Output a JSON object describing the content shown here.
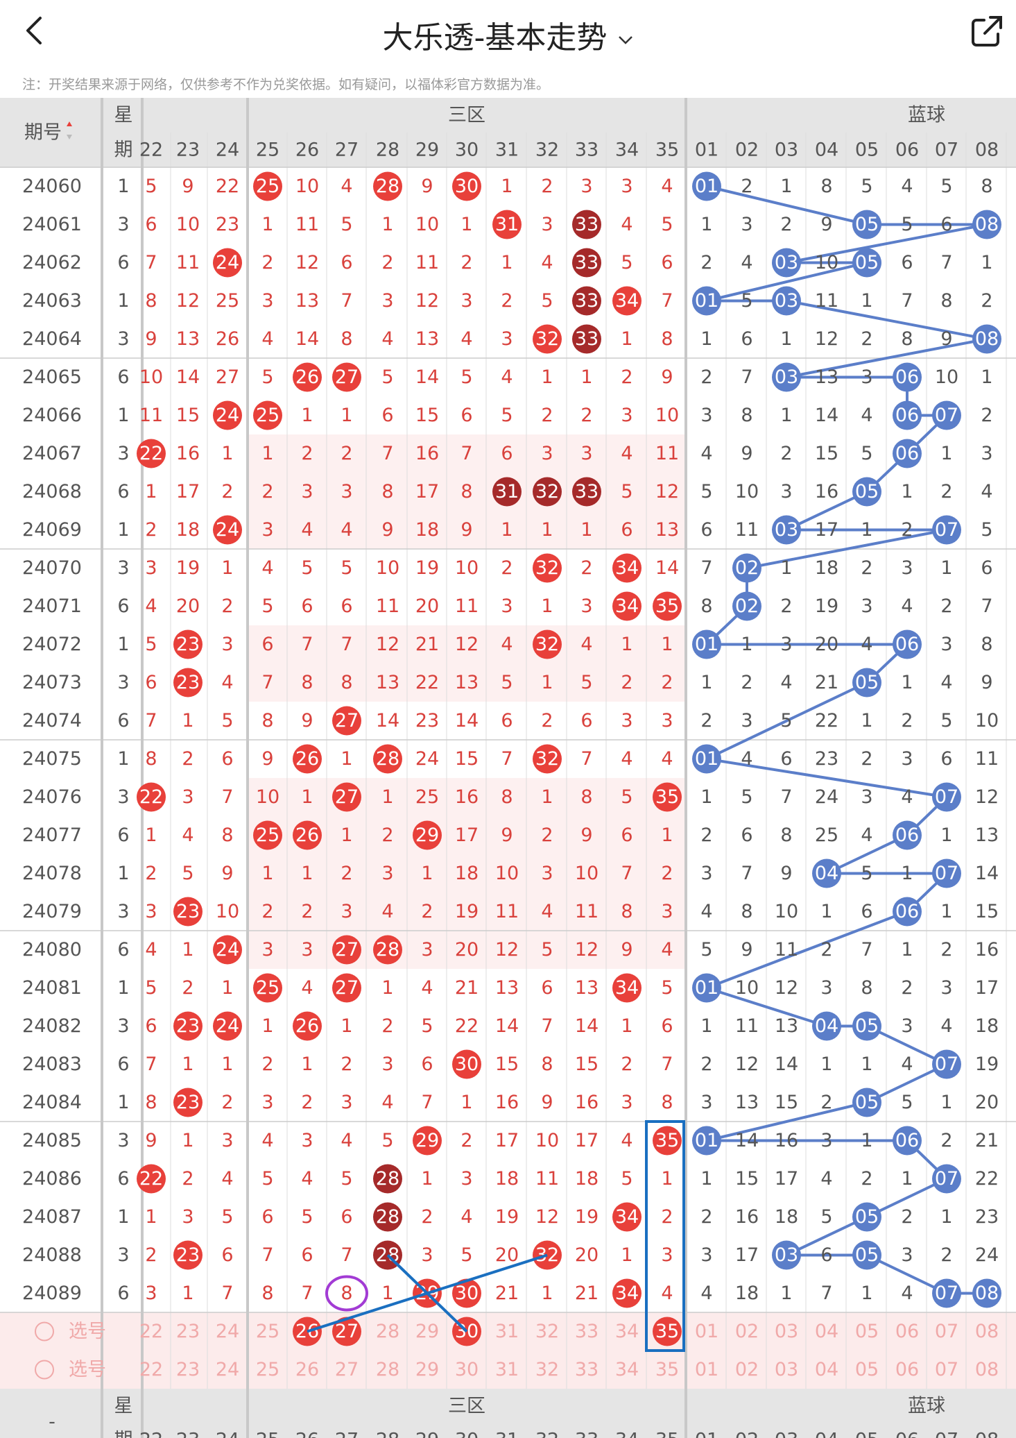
{
  "header": {
    "title": "大乐透-基本走势",
    "note": "注：开奖结果来源于网络，仅供参考不作为兑奖依据。如有疑问，以福体彩官方数据为准。"
  },
  "table": {
    "issue_label": "期号",
    "weekday_label_1": "星",
    "weekday_label_2": "期",
    "zone3_label": "三区",
    "blue_label": "蓝球",
    "pick_label": "选号",
    "bottom_issue_label": "-",
    "red_columns": [
      "22",
      "23",
      "24",
      "25",
      "26",
      "27",
      "28",
      "29",
      "30",
      "31",
      "32",
      "33",
      "34",
      "35"
    ],
    "blue_columns": [
      "01",
      "02",
      "03",
      "04",
      "05",
      "06",
      "07",
      "08"
    ],
    "rows": [
      {
        "issue": "24060",
        "wd": "1",
        "red": [
          "5",
          "9",
          "22",
          "25",
          "10",
          "4",
          "28",
          "9",
          "30",
          "1",
          "2",
          "3",
          "3",
          "4"
        ],
        "blue": [
          "01",
          "2",
          "1",
          "8",
          "5",
          "4",
          "5",
          "8"
        ]
      },
      {
        "issue": "24061",
        "wd": "3",
        "red": [
          "6",
          "10",
          "23",
          "1",
          "11",
          "5",
          "1",
          "10",
          "1",
          "31",
          "3",
          "33",
          "4",
          "5"
        ],
        "blue": [
          "1",
          "3",
          "2",
          "9",
          "05",
          "5",
          "6",
          "08"
        ]
      },
      {
        "issue": "24062",
        "wd": "6",
        "red": [
          "7",
          "11",
          "24",
          "2",
          "12",
          "6",
          "2",
          "11",
          "2",
          "1",
          "4",
          "33",
          "5",
          "6"
        ],
        "blue": [
          "2",
          "4",
          "03",
          "10",
          "05",
          "6",
          "7",
          "1"
        ]
      },
      {
        "issue": "24063",
        "wd": "1",
        "red": [
          "8",
          "12",
          "25",
          "3",
          "13",
          "7",
          "3",
          "12",
          "3",
          "2",
          "5",
          "33",
          "34",
          "7"
        ],
        "blue": [
          "01",
          "5",
          "03",
          "11",
          "1",
          "7",
          "8",
          "2"
        ]
      },
      {
        "issue": "24064",
        "wd": "3",
        "red": [
          "9",
          "13",
          "26",
          "4",
          "14",
          "8",
          "4",
          "13",
          "4",
          "3",
          "32",
          "33",
          "1",
          "8"
        ],
        "blue": [
          "1",
          "6",
          "1",
          "12",
          "2",
          "8",
          "9",
          "08"
        ]
      },
      {
        "issue": "24065",
        "wd": "6",
        "red": [
          "10",
          "14",
          "27",
          "5",
          "26",
          "27",
          "5",
          "14",
          "5",
          "4",
          "1",
          "1",
          "2",
          "9"
        ],
        "blue": [
          "2",
          "7",
          "03",
          "13",
          "3",
          "06",
          "10",
          "1"
        ]
      },
      {
        "issue": "24066",
        "wd": "1",
        "red": [
          "11",
          "15",
          "24",
          "25",
          "1",
          "1",
          "6",
          "15",
          "6",
          "5",
          "2",
          "2",
          "3",
          "10"
        ],
        "blue": [
          "3",
          "8",
          "1",
          "14",
          "4",
          "06",
          "07",
          "2"
        ]
      },
      {
        "issue": "24067",
        "wd": "3",
        "red": [
          "22",
          "16",
          "1",
          "1",
          "2",
          "2",
          "7",
          "16",
          "7",
          "6",
          "3",
          "3",
          "4",
          "11"
        ],
        "blue": [
          "4",
          "9",
          "2",
          "15",
          "5",
          "06",
          "1",
          "3"
        ]
      },
      {
        "issue": "24068",
        "wd": "6",
        "red": [
          "1",
          "17",
          "2",
          "2",
          "3",
          "3",
          "8",
          "17",
          "8",
          "31",
          "32",
          "33",
          "5",
          "12"
        ],
        "blue": [
          "5",
          "10",
          "3",
          "16",
          "05",
          "1",
          "2",
          "4"
        ]
      },
      {
        "issue": "24069",
        "wd": "1",
        "red": [
          "2",
          "18",
          "24",
          "3",
          "4",
          "4",
          "9",
          "18",
          "9",
          "1",
          "1",
          "1",
          "6",
          "13"
        ],
        "blue": [
          "6",
          "11",
          "03",
          "17",
          "1",
          "2",
          "07",
          "5"
        ]
      },
      {
        "issue": "24070",
        "wd": "3",
        "red": [
          "3",
          "19",
          "1",
          "4",
          "5",
          "5",
          "10",
          "19",
          "10",
          "2",
          "32",
          "2",
          "34",
          "14"
        ],
        "blue": [
          "7",
          "02",
          "1",
          "18",
          "2",
          "3",
          "1",
          "6"
        ]
      },
      {
        "issue": "24071",
        "wd": "6",
        "red": [
          "4",
          "20",
          "2",
          "5",
          "6",
          "6",
          "11",
          "20",
          "11",
          "3",
          "1",
          "3",
          "34",
          "35"
        ],
        "blue": [
          "8",
          "02",
          "2",
          "19",
          "3",
          "4",
          "2",
          "7"
        ]
      },
      {
        "issue": "24072",
        "wd": "1",
        "red": [
          "5",
          "23",
          "3",
          "6",
          "7",
          "7",
          "12",
          "21",
          "12",
          "4",
          "32",
          "4",
          "1",
          "1"
        ],
        "blue": [
          "01",
          "1",
          "3",
          "20",
          "4",
          "06",
          "3",
          "8"
        ]
      },
      {
        "issue": "24073",
        "wd": "3",
        "red": [
          "6",
          "23",
          "4",
          "7",
          "8",
          "8",
          "13",
          "22",
          "13",
          "5",
          "1",
          "5",
          "2",
          "2"
        ],
        "blue": [
          "1",
          "2",
          "4",
          "21",
          "05",
          "1",
          "4",
          "9"
        ]
      },
      {
        "issue": "24074",
        "wd": "6",
        "red": [
          "7",
          "1",
          "5",
          "8",
          "9",
          "27",
          "14",
          "23",
          "14",
          "6",
          "2",
          "6",
          "3",
          "3"
        ],
        "blue": [
          "2",
          "3",
          "5",
          "22",
          "1",
          "2",
          "5",
          "10"
        ]
      },
      {
        "issue": "24075",
        "wd": "1",
        "red": [
          "8",
          "2",
          "6",
          "9",
          "26",
          "1",
          "28",
          "24",
          "15",
          "7",
          "32",
          "7",
          "4",
          "4"
        ],
        "blue": [
          "01",
          "4",
          "6",
          "23",
          "2",
          "3",
          "6",
          "11"
        ]
      },
      {
        "issue": "24076",
        "wd": "3",
        "red": [
          "22",
          "3",
          "7",
          "10",
          "1",
          "27",
          "1",
          "25",
          "16",
          "8",
          "1",
          "8",
          "5",
          "35"
        ],
        "blue": [
          "1",
          "5",
          "7",
          "24",
          "3",
          "4",
          "07",
          "12"
        ]
      },
      {
        "issue": "24077",
        "wd": "6",
        "red": [
          "1",
          "4",
          "8",
          "25",
          "26",
          "1",
          "2",
          "29",
          "17",
          "9",
          "2",
          "9",
          "6",
          "1"
        ],
        "blue": [
          "2",
          "6",
          "8",
          "25",
          "4",
          "06",
          "1",
          "13"
        ]
      },
      {
        "issue": "24078",
        "wd": "1",
        "red": [
          "2",
          "5",
          "9",
          "1",
          "1",
          "2",
          "3",
          "1",
          "18",
          "10",
          "3",
          "10",
          "7",
          "2"
        ],
        "blue": [
          "3",
          "7",
          "9",
          "04",
          "5",
          "1",
          "07",
          "14"
        ]
      },
      {
        "issue": "24079",
        "wd": "3",
        "red": [
          "3",
          "23",
          "10",
          "2",
          "2",
          "3",
          "4",
          "2",
          "19",
          "11",
          "4",
          "11",
          "8",
          "3"
        ],
        "blue": [
          "4",
          "8",
          "10",
          "1",
          "6",
          "06",
          "1",
          "15"
        ]
      },
      {
        "issue": "24080",
        "wd": "6",
        "red": [
          "4",
          "1",
          "24",
          "3",
          "3",
          "27",
          "28",
          "3",
          "20",
          "12",
          "5",
          "12",
          "9",
          "4"
        ],
        "blue": [
          "5",
          "9",
          "11",
          "2",
          "7",
          "1",
          "2",
          "16"
        ]
      },
      {
        "issue": "24081",
        "wd": "1",
        "red": [
          "5",
          "2",
          "1",
          "25",
          "4",
          "27",
          "1",
          "4",
          "21",
          "13",
          "6",
          "13",
          "34",
          "5"
        ],
        "blue": [
          "01",
          "10",
          "12",
          "3",
          "8",
          "2",
          "3",
          "17"
        ]
      },
      {
        "issue": "24082",
        "wd": "3",
        "red": [
          "6",
          "23",
          "24",
          "1",
          "26",
          "1",
          "2",
          "5",
          "22",
          "14",
          "7",
          "14",
          "1",
          "6"
        ],
        "blue": [
          "1",
          "11",
          "13",
          "04",
          "05",
          "3",
          "4",
          "18"
        ]
      },
      {
        "issue": "24083",
        "wd": "6",
        "red": [
          "7",
          "1",
          "1",
          "2",
          "1",
          "2",
          "3",
          "6",
          "30",
          "15",
          "8",
          "15",
          "2",
          "7"
        ],
        "blue": [
          "2",
          "12",
          "14",
          "1",
          "1",
          "4",
          "07",
          "19"
        ]
      },
      {
        "issue": "24084",
        "wd": "1",
        "red": [
          "8",
          "23",
          "2",
          "3",
          "2",
          "3",
          "4",
          "7",
          "1",
          "16",
          "9",
          "16",
          "3",
          "8"
        ],
        "blue": [
          "3",
          "13",
          "15",
          "2",
          "05",
          "5",
          "1",
          "20"
        ]
      },
      {
        "issue": "24085",
        "wd": "3",
        "red": [
          "9",
          "1",
          "3",
          "4",
          "3",
          "4",
          "5",
          "29",
          "2",
          "17",
          "10",
          "17",
          "4",
          "35"
        ],
        "blue": [
          "01",
          "14",
          "16",
          "3",
          "1",
          "06",
          "2",
          "21"
        ]
      },
      {
        "issue": "24086",
        "wd": "6",
        "red": [
          "22",
          "2",
          "4",
          "5",
          "4",
          "5",
          "28",
          "1",
          "3",
          "18",
          "11",
          "18",
          "5",
          "1"
        ],
        "blue": [
          "1",
          "15",
          "17",
          "4",
          "2",
          "1",
          "07",
          "22"
        ]
      },
      {
        "issue": "24087",
        "wd": "1",
        "red": [
          "1",
          "3",
          "5",
          "6",
          "5",
          "6",
          "28",
          "2",
          "4",
          "19",
          "12",
          "19",
          "34",
          "2"
        ],
        "blue": [
          "2",
          "16",
          "18",
          "5",
          "05",
          "2",
          "1",
          "23"
        ]
      },
      {
        "issue": "24088",
        "wd": "3",
        "red": [
          "2",
          "23",
          "6",
          "7",
          "6",
          "7",
          "28",
          "3",
          "5",
          "20",
          "32",
          "20",
          "1",
          "3"
        ],
        "blue": [
          "3",
          "17",
          "03",
          "6",
          "05",
          "3",
          "2",
          "24"
        ]
      },
      {
        "issue": "24089",
        "wd": "6",
        "red": [
          "3",
          "1",
          "7",
          "8",
          "7",
          "8",
          "1",
          "29",
          "30",
          "21",
          "1",
          "21",
          "34",
          "4"
        ],
        "blue": [
          "4",
          "18",
          "1",
          "7",
          "1",
          "4",
          "07",
          "08"
        ]
      }
    ]
  },
  "colors": {
    "red_ball": "#e8403a",
    "dark_ball": "#a52a2a",
    "blue_ball": "#5b7ec9",
    "blue_line": "#5b7ec9",
    "annot_blue": "#1a6fc0",
    "annot_purple": "#a23bd4"
  }
}
